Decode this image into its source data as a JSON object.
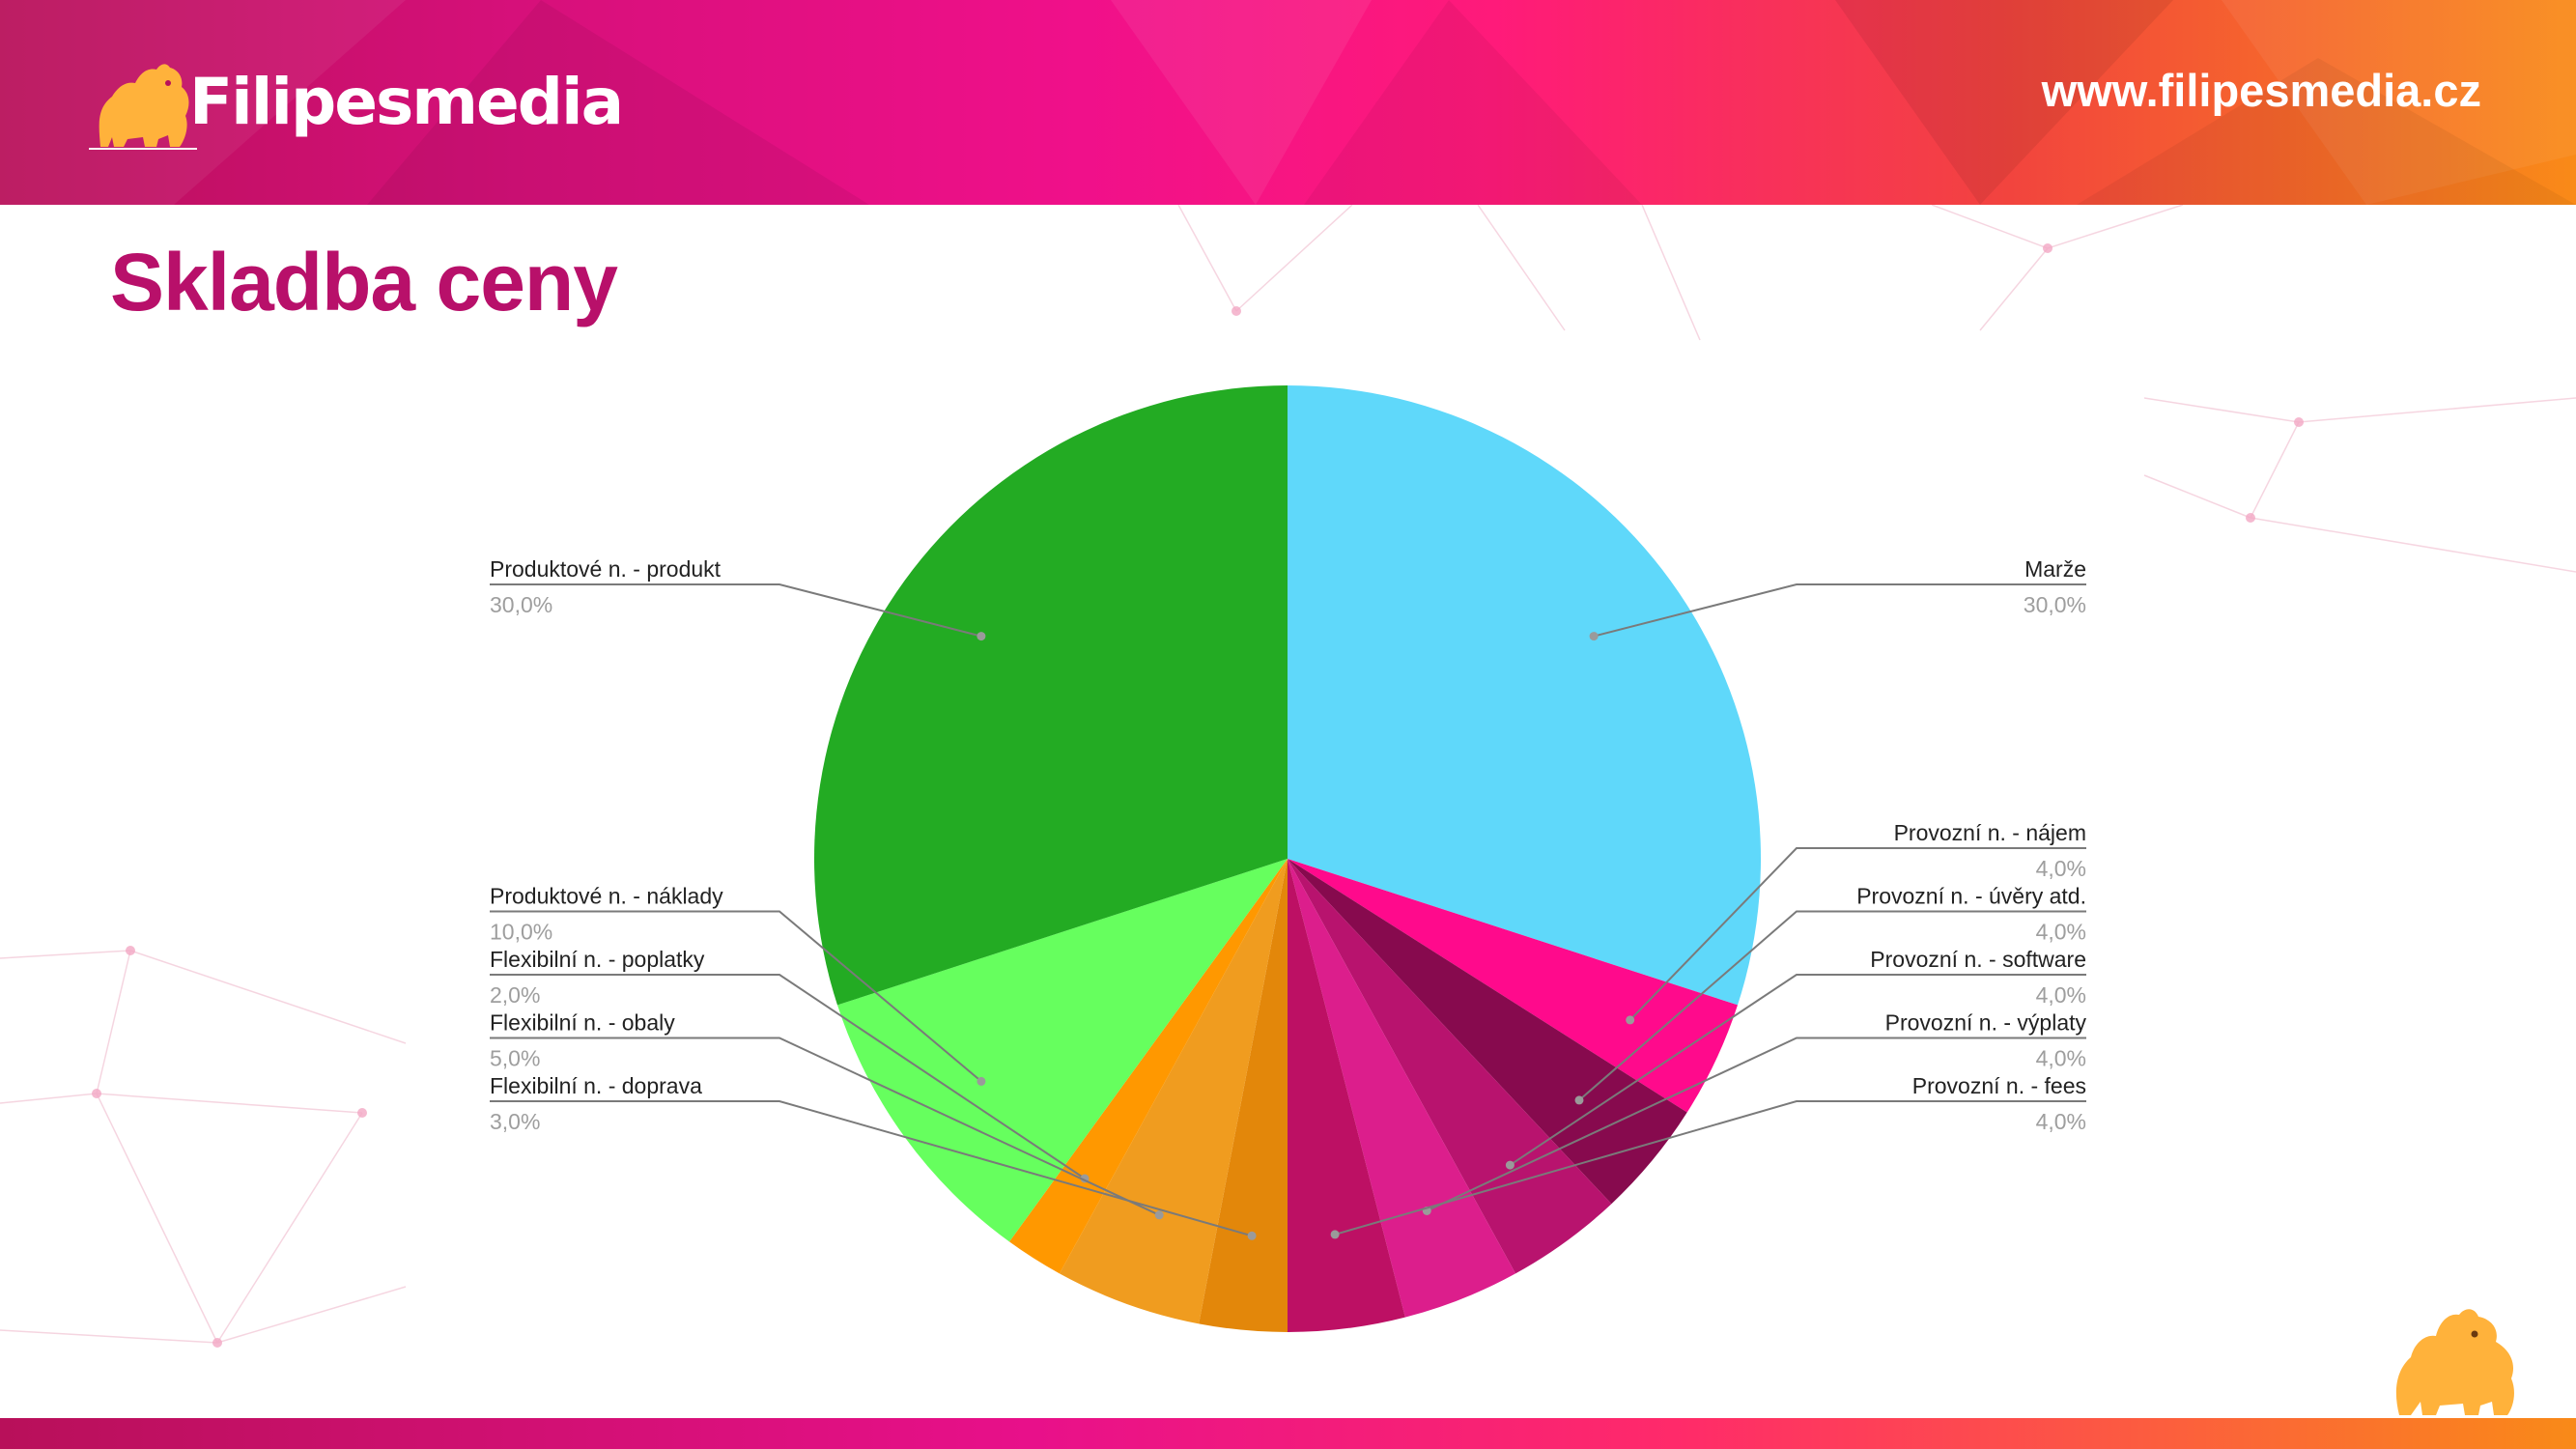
{
  "header": {
    "logo_text": "Filipesmedia",
    "url": "www.filipesmedia.cz"
  },
  "page": {
    "title": "Skladba ceny"
  },
  "colors": {
    "title": "#b8106a",
    "header_start": "#b8105a",
    "header_end": "#f98a18"
  },
  "icons": {
    "logo": "dog-logo-icon",
    "corner": "dog-corner-icon"
  },
  "chart_data": {
    "type": "pie",
    "title": "",
    "start_angle_deg": 0,
    "direction": "clockwise",
    "slices": [
      {
        "label": "Marže",
        "value": 30.0,
        "display": "30,0%",
        "color": "#5fd8fa",
        "side": "right"
      },
      {
        "label": "Provozní n. - nájem",
        "value": 4.0,
        "display": "4,0%",
        "color": "#ff0a8c",
        "side": "right"
      },
      {
        "label": "Provozní n. - úvěry atd.",
        "value": 4.0,
        "display": "4,0%",
        "color": "#870a4e",
        "side": "right"
      },
      {
        "label": "Provozní n. - software",
        "value": 4.0,
        "display": "4,0%",
        "color": "#b8136e",
        "side": "right"
      },
      {
        "label": "Provozní n. - výplaty",
        "value": 4.0,
        "display": "4,0%",
        "color": "#dc1e8c",
        "side": "right"
      },
      {
        "label": "Provozní n. - fees",
        "value": 4.0,
        "display": "4,0%",
        "color": "#bd1064",
        "side": "right"
      },
      {
        "label": "Flexibilní n. - doprava",
        "value": 3.0,
        "display": "3,0%",
        "color": "#e3870a",
        "side": "left"
      },
      {
        "label": "Flexibilní n. - obaly",
        "value": 5.0,
        "display": "5,0%",
        "color": "#f09c1f",
        "side": "left"
      },
      {
        "label": "Flexibilní n. - poplatky",
        "value": 2.0,
        "display": "2,0%",
        "color": "#ff9800",
        "side": "left"
      },
      {
        "label": "Produktové n. - náklady",
        "value": 10.0,
        "display": "10,0%",
        "color": "#66ff5e",
        "side": "left"
      },
      {
        "label": "Produktové n. - produkt",
        "value": 30.0,
        "display": "30,0%",
        "color": "#23ab23",
        "side": "left"
      }
    ]
  }
}
